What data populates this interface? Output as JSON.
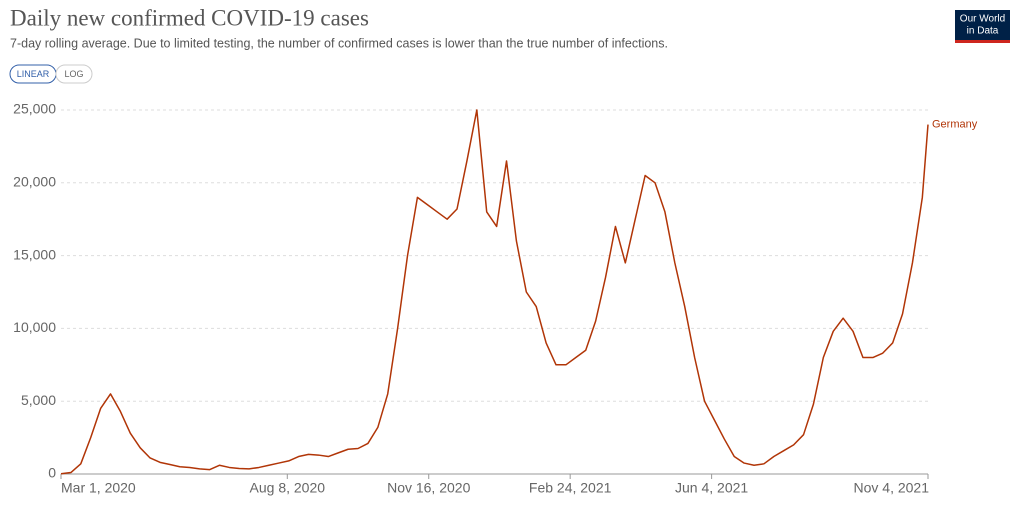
{
  "chart_data": {
    "type": "line",
    "title": "Daily new confirmed COVID-19 cases",
    "subtitle": "7-day rolling average. Due to limited testing, the number of confirmed cases is lower than the true number of infections.",
    "scale_buttons": [
      "LINEAR",
      "LOG"
    ],
    "logo": [
      "Our World",
      "in Data"
    ],
    "log_scale": false,
    "grid": true,
    "x": [
      "2020-03-01",
      "2020-03-08",
      "2020-03-15",
      "2020-03-22",
      "2020-03-29",
      "2020-04-05",
      "2020-04-12",
      "2020-04-19",
      "2020-04-26",
      "2020-05-03",
      "2020-05-10",
      "2020-05-17",
      "2020-05-24",
      "2020-05-31",
      "2020-06-07",
      "2020-06-14",
      "2020-06-21",
      "2020-06-28",
      "2020-07-05",
      "2020-07-12",
      "2020-07-19",
      "2020-07-26",
      "2020-08-02",
      "2020-08-09",
      "2020-08-16",
      "2020-08-23",
      "2020-08-30",
      "2020-09-06",
      "2020-09-13",
      "2020-09-20",
      "2020-09-27",
      "2020-10-04",
      "2020-10-11",
      "2020-10-18",
      "2020-10-25",
      "2020-11-01",
      "2020-11-08",
      "2020-11-15",
      "2020-11-22",
      "2020-11-29",
      "2020-12-06",
      "2020-12-13",
      "2020-12-20",
      "2020-12-27",
      "2021-01-03",
      "2021-01-10",
      "2021-01-17",
      "2021-01-24",
      "2021-01-31",
      "2021-02-07",
      "2021-02-14",
      "2021-02-21",
      "2021-02-28",
      "2021-03-07",
      "2021-03-14",
      "2021-03-21",
      "2021-03-28",
      "2021-04-04",
      "2021-04-11",
      "2021-04-18",
      "2021-04-25",
      "2021-05-02",
      "2021-05-09",
      "2021-05-16",
      "2021-05-23",
      "2021-05-30",
      "2021-06-06",
      "2021-06-13",
      "2021-06-20",
      "2021-06-27",
      "2021-07-04",
      "2021-07-11",
      "2021-07-18",
      "2021-07-25",
      "2021-08-01",
      "2021-08-08",
      "2021-08-15",
      "2021-08-22",
      "2021-08-29",
      "2021-09-05",
      "2021-09-12",
      "2021-09-19",
      "2021-09-26",
      "2021-10-03",
      "2021-10-10",
      "2021-10-17",
      "2021-10-24",
      "2021-10-31",
      "2021-11-04"
    ],
    "series": [
      {
        "name": "Germany",
        "color": "#b13507",
        "values": [
          20,
          100,
          700,
          2500,
          4500,
          5500,
          4300,
          2800,
          1800,
          1100,
          800,
          650,
          500,
          450,
          350,
          300,
          600,
          450,
          380,
          350,
          450,
          600,
          750,
          900,
          1200,
          1350,
          1300,
          1200,
          1450,
          1700,
          1750,
          2100,
          3200,
          5500,
          10000,
          15000,
          19000,
          18500,
          18000,
          17500,
          18200,
          21500,
          25000,
          18000,
          17000,
          21500,
          16000,
          12500,
          11500,
          9000,
          7500,
          7500,
          8000,
          8500,
          10500,
          13500,
          17000,
          14500,
          17500,
          20500,
          20000,
          18000,
          14500,
          11500,
          8000,
          5000,
          3700,
          2400,
          1200,
          750,
          600,
          700,
          1200,
          1600,
          2000,
          2700,
          4800,
          8000,
          9800,
          10700,
          9800,
          8000,
          8000,
          8300,
          9000,
          11000,
          14500,
          19000,
          24000
        ]
      }
    ],
    "xlim": [
      "2020-03-01",
      "2021-11-04"
    ],
    "xticks": [
      {
        "value": "2020-03-01",
        "label": "Mar 1, 2020"
      },
      {
        "value": "2020-08-08",
        "label": "Aug 8, 2020"
      },
      {
        "value": "2020-11-16",
        "label": "Nov 16, 2020"
      },
      {
        "value": "2021-02-24",
        "label": "Feb 24, 2021"
      },
      {
        "value": "2021-06-04",
        "label": "Jun 4, 2021"
      },
      {
        "value": "2021-11-04",
        "label": "Nov 4, 2021"
      }
    ],
    "ylim": [
      0,
      25000
    ],
    "yticks": [
      0,
      {
        "value": 5000,
        "label": "5,000"
      },
      {
        "value": 10000,
        "label": "10,000"
      },
      {
        "value": 15000,
        "label": "15,000"
      },
      {
        "value": 20000,
        "label": "20,000"
      },
      {
        "value": 25000,
        "label": "25,000"
      }
    ]
  }
}
